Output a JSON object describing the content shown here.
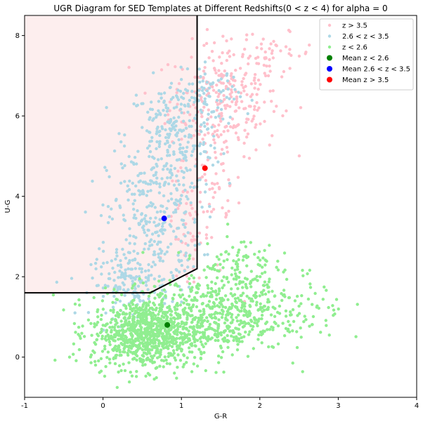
{
  "chart_data": {
    "type": "scatter",
    "title": "UGR Diagram for SED Templates at Different Redshifts(0 < z < 4) for alpha = 0",
    "xlabel": "G-R",
    "ylabel": "U-G",
    "xlim": [
      -1,
      4
    ],
    "ylim": [
      -1,
      8.5
    ],
    "xticks": [
      -1,
      0,
      1,
      2,
      3,
      4
    ],
    "yticks": [
      0,
      2,
      4,
      6,
      8
    ],
    "grid": false,
    "legend_position": "top-right",
    "series": [
      {
        "name": "z > 3.5",
        "color": "#ffc0cb",
        "marker": "dot-small",
        "cloud": [
          {
            "x": 1.55,
            "y": 6.4,
            "sx": 0.35,
            "sy": 0.7,
            "n": 260
          },
          {
            "x": 2.1,
            "y": 7.55,
            "sx": 0.3,
            "sy": 0.25,
            "n": 45
          },
          {
            "x": 1.4,
            "y": 4.2,
            "sx": 0.18,
            "sy": 1.1,
            "n": 70
          },
          {
            "x": 1.05,
            "y": 3.2,
            "sx": 0.12,
            "sy": 0.8,
            "n": 50
          }
        ]
      },
      {
        "name": "2.6 < z < 3.5",
        "color": "#add8e6",
        "marker": "dot-small",
        "cloud": [
          {
            "x": 0.9,
            "y": 5.5,
            "sx": 0.3,
            "sy": 0.7,
            "n": 250
          },
          {
            "x": 0.65,
            "y": 3.4,
            "sx": 0.3,
            "sy": 0.9,
            "n": 280
          },
          {
            "x": 0.35,
            "y": 1.8,
            "sx": 0.25,
            "sy": 0.4,
            "n": 150
          },
          {
            "x": 1.35,
            "y": 6.5,
            "sx": 0.2,
            "sy": 0.35,
            "n": 70
          }
        ]
      },
      {
        "name": "z < 2.6",
        "color": "#90ee90",
        "marker": "dot-small",
        "cloud": [
          {
            "x": 0.55,
            "y": 0.6,
            "sx": 0.35,
            "sy": 0.45,
            "n": 900
          },
          {
            "x": 1.4,
            "y": 1.0,
            "sx": 0.45,
            "sy": 0.45,
            "n": 450
          },
          {
            "x": 1.7,
            "y": 2.2,
            "sx": 0.25,
            "sy": 0.45,
            "n": 120
          },
          {
            "x": 2.3,
            "y": 1.2,
            "sx": 0.4,
            "sy": 0.5,
            "n": 110
          }
        ]
      },
      {
        "name": "Mean z < 2.6",
        "color": "#008000",
        "marker": "dot-large",
        "points": [
          {
            "x": 0.82,
            "y": 0.8
          }
        ]
      },
      {
        "name": "Mean 2.6 < z < 3.5",
        "color": "#0000ff",
        "marker": "dot-large",
        "points": [
          {
            "x": 0.78,
            "y": 3.45
          }
        ]
      },
      {
        "name": "Mean z > 3.5",
        "color": "#ff0000",
        "marker": "dot-large",
        "points": [
          {
            "x": 1.3,
            "y": 4.7
          }
        ]
      }
    ],
    "selection_region": {
      "fill": "#fdeeee",
      "line_color": "#000000",
      "polyline": [
        [
          -1,
          1.6
        ],
        [
          0.6,
          1.6
        ],
        [
          1.2,
          2.2
        ],
        [
          1.2,
          8.5
        ]
      ]
    }
  }
}
